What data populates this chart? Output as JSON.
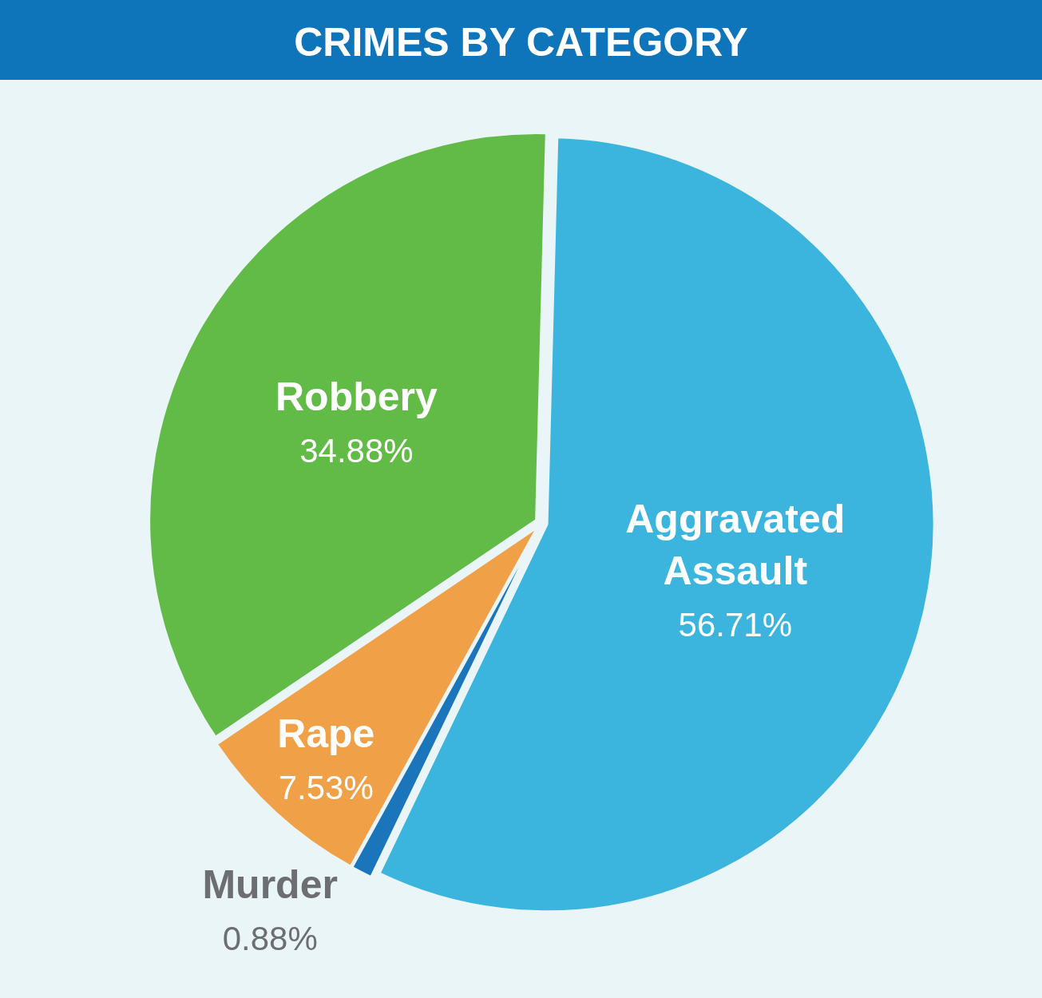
{
  "chart_data": {
    "type": "pie",
    "title": "CRIMES BY CATEGORY",
    "categories": [
      "Aggravated Assault",
      "Murder",
      "Rape",
      "Robbery"
    ],
    "values": [
      56.71,
      0.88,
      7.53,
      34.88
    ],
    "colors": [
      "#3cb5de",
      "#1b75bb",
      "#f0a046",
      "#63bb47"
    ],
    "value_labels": [
      "56.71%",
      "0.88%",
      "7.53%",
      "34.88%"
    ]
  }
}
